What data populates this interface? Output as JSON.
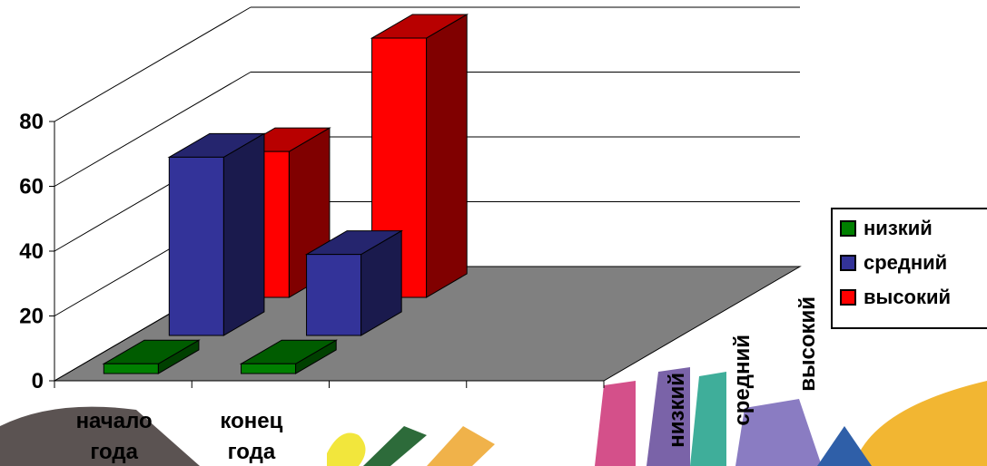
{
  "chart_data": {
    "type": "bar",
    "categories": [
      "начало года",
      "конец года"
    ],
    "category_lines": [
      [
        "начало",
        "года"
      ],
      [
        "конец",
        "года"
      ]
    ],
    "series": [
      {
        "name": "низкий",
        "values": [
          3,
          3
        ],
        "color": "#008000"
      },
      {
        "name": "средний",
        "values": [
          55,
          25
        ],
        "color": "#333399"
      },
      {
        "name": "высокий",
        "values": [
          45,
          80
        ],
        "color": "#ff0000"
      }
    ],
    "yticks": [
      "0",
      "20",
      "40",
      "60",
      "80"
    ],
    "ylim": [
      0,
      80
    ],
    "depth_labels": [
      "низкий",
      "средний",
      "высокий"
    ],
    "legend_position": "right",
    "grid": true,
    "floor_color": "#808080",
    "background_color": "#ffffff"
  }
}
